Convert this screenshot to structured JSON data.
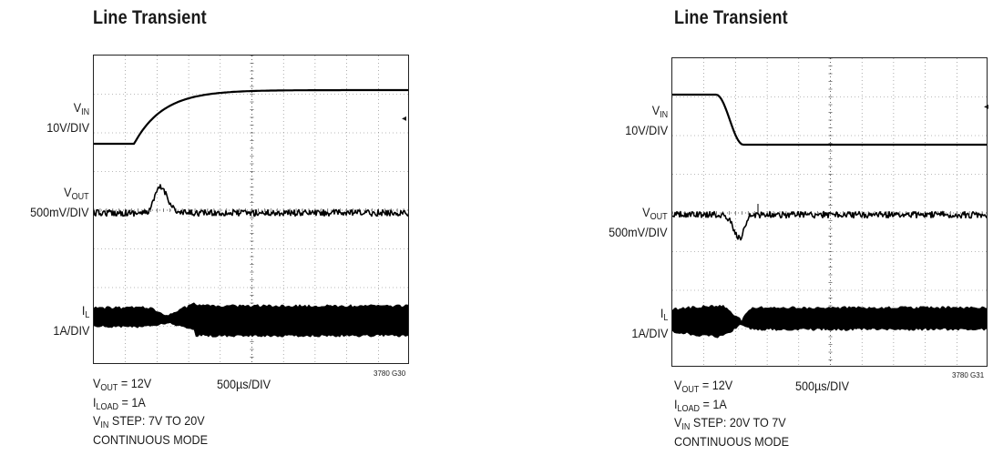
{
  "panels": [
    {
      "title": "Line Transient",
      "labels": {
        "vin": {
          "name": "V",
          "sub": "IN",
          "scale": "10V/DIV"
        },
        "vout": {
          "name": "V",
          "sub": "OUT",
          "scale": "500mV/DIV"
        },
        "il": {
          "name": "I",
          "sub": "L",
          "scale": "1A/DIV"
        }
      },
      "time_div": "500µs/DIV",
      "code": "3780 G30",
      "notes": {
        "vout_pre": "V",
        "vout_sub": "OUT",
        "vout_post": " = 12V",
        "iload_pre": "I",
        "iload_sub": "LOAD",
        "iload_post": " = 1A",
        "step_pre": "V",
        "step_sub": "IN",
        "step_post": " STEP: 7V TO 20V",
        "mode": "CONTINUOUS MODE"
      },
      "marker": "◂"
    },
    {
      "title": "Line Transient",
      "labels": {
        "vin": {
          "name": "V",
          "sub": "IN",
          "scale": "10V/DIV"
        },
        "vout": {
          "name": "V",
          "sub": "OUT",
          "scale": "500mV/DIV"
        },
        "il": {
          "name": "I",
          "sub": "L",
          "scale": "1A/DIV"
        }
      },
      "time_div": "500µs/DIV",
      "code": "3780 G31",
      "notes": {
        "vout_pre": "V",
        "vout_sub": "OUT",
        "vout_post": " = 12V",
        "iload_pre": "I",
        "iload_sub": "LOAD",
        "iload_post": " = 1A",
        "step_pre": "V",
        "step_sub": "IN",
        "step_post": " STEP: 20V TO 7V",
        "mode": "CONTINUOUS MODE"
      },
      "marker": "◂"
    }
  ],
  "chart_data": [
    {
      "type": "line",
      "title": "Line Transient",
      "xlabel": "500µs/DIV",
      "x_divisions": 10,
      "y_divisions": 8,
      "grid": true,
      "series": [
        {
          "name": "VIN",
          "scale": "10V/DIV",
          "x": [
            0,
            1.3,
            1.7,
            2.2,
            3.0,
            4.0,
            10
          ],
          "values": [
            7,
            7,
            13,
            17,
            19.5,
            20,
            20
          ]
        },
        {
          "name": "VOUT",
          "scale": "500mV/DIV",
          "x": [
            0,
            1.6,
            1.9,
            2.1,
            2.5,
            10
          ],
          "values": [
            12,
            12,
            12.7,
            12.55,
            12,
            12
          ]
        },
        {
          "name": "IL",
          "scale": "1A/DIV",
          "x": [
            0,
            1.9,
            2.2,
            3.0,
            10
          ],
          "values": [
            1,
            1,
            1,
            1,
            1
          ]
        }
      ]
    },
    {
      "type": "line",
      "title": "Line Transient",
      "xlabel": "500µs/DIV",
      "x_divisions": 10,
      "y_divisions": 8,
      "grid": true,
      "series": [
        {
          "name": "VIN",
          "scale": "10V/DIV",
          "x": [
            0,
            1.4,
            1.7,
            2.1,
            10
          ],
          "values": [
            20,
            20,
            16,
            7,
            7
          ]
        },
        {
          "name": "VOUT",
          "scale": "500mV/DIV",
          "x": [
            0,
            1.9,
            2.15,
            2.4,
            10
          ],
          "values": [
            12,
            12,
            11.3,
            12,
            12
          ]
        },
        {
          "name": "IL",
          "scale": "1A/DIV",
          "x": [
            0,
            1.9,
            2.2,
            10
          ],
          "values": [
            1,
            1,
            1,
            1
          ]
        }
      ]
    }
  ]
}
